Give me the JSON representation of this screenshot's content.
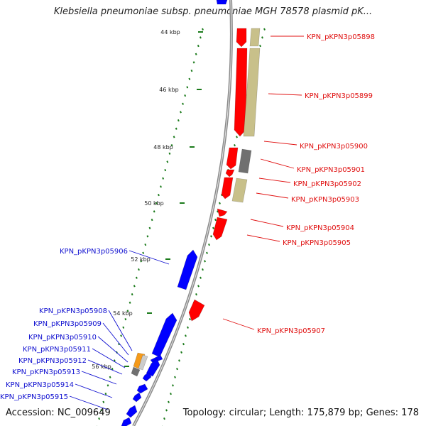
{
  "title": "Klebsiella pneumoniae subsp. pneumoniae MGH 78578 plasmid pK...",
  "footer": {
    "accession": "Accession: NC_009649",
    "topology": "Topology: circular; Length: 175,879 bp; Genes: 178"
  },
  "colors": {
    "forward_cds": "#ff0000",
    "reverse_cds": "#0000ff",
    "tan_feature": "#c8c08a",
    "gray_feature": "#707070",
    "orange_feature": "#f59a1a",
    "tick": "#1a7a1a",
    "backbone": "#999999"
  },
  "scale_labels": [
    {
      "text": "44 kbp"
    },
    {
      "text": "46 kbp"
    },
    {
      "text": "48 kbp"
    },
    {
      "text": "50 kbp"
    },
    {
      "text": "52 kbp"
    },
    {
      "text": "54 kbp"
    },
    {
      "text": "56 kbp"
    }
  ],
  "gene_labels_right": [
    "KPN_pKPN3p05898",
    "KPN_pKPN3p05899",
    "KPN_pKPN3p05900",
    "KPN_pKPN3p05901",
    "KPN_pKPN3p05902",
    "KPN_pKPN3p05903",
    "KPN_pKPN3p05904",
    "KPN_pKPN3p05905",
    "KPN_pKPN3p05907"
  ],
  "gene_labels_left": [
    "KPN_pKPN3p05906",
    "KPN_pKPN3p05908",
    "KPN_pKPN3p05909",
    "KPN_pKPN3p05910",
    "KPN_pKPN3p05911",
    "KPN_pKPN3p05912",
    "KPN_pKPN3p05913",
    "KPN_pKPN3p05914",
    "KPN_pKPN3p05915"
  ]
}
